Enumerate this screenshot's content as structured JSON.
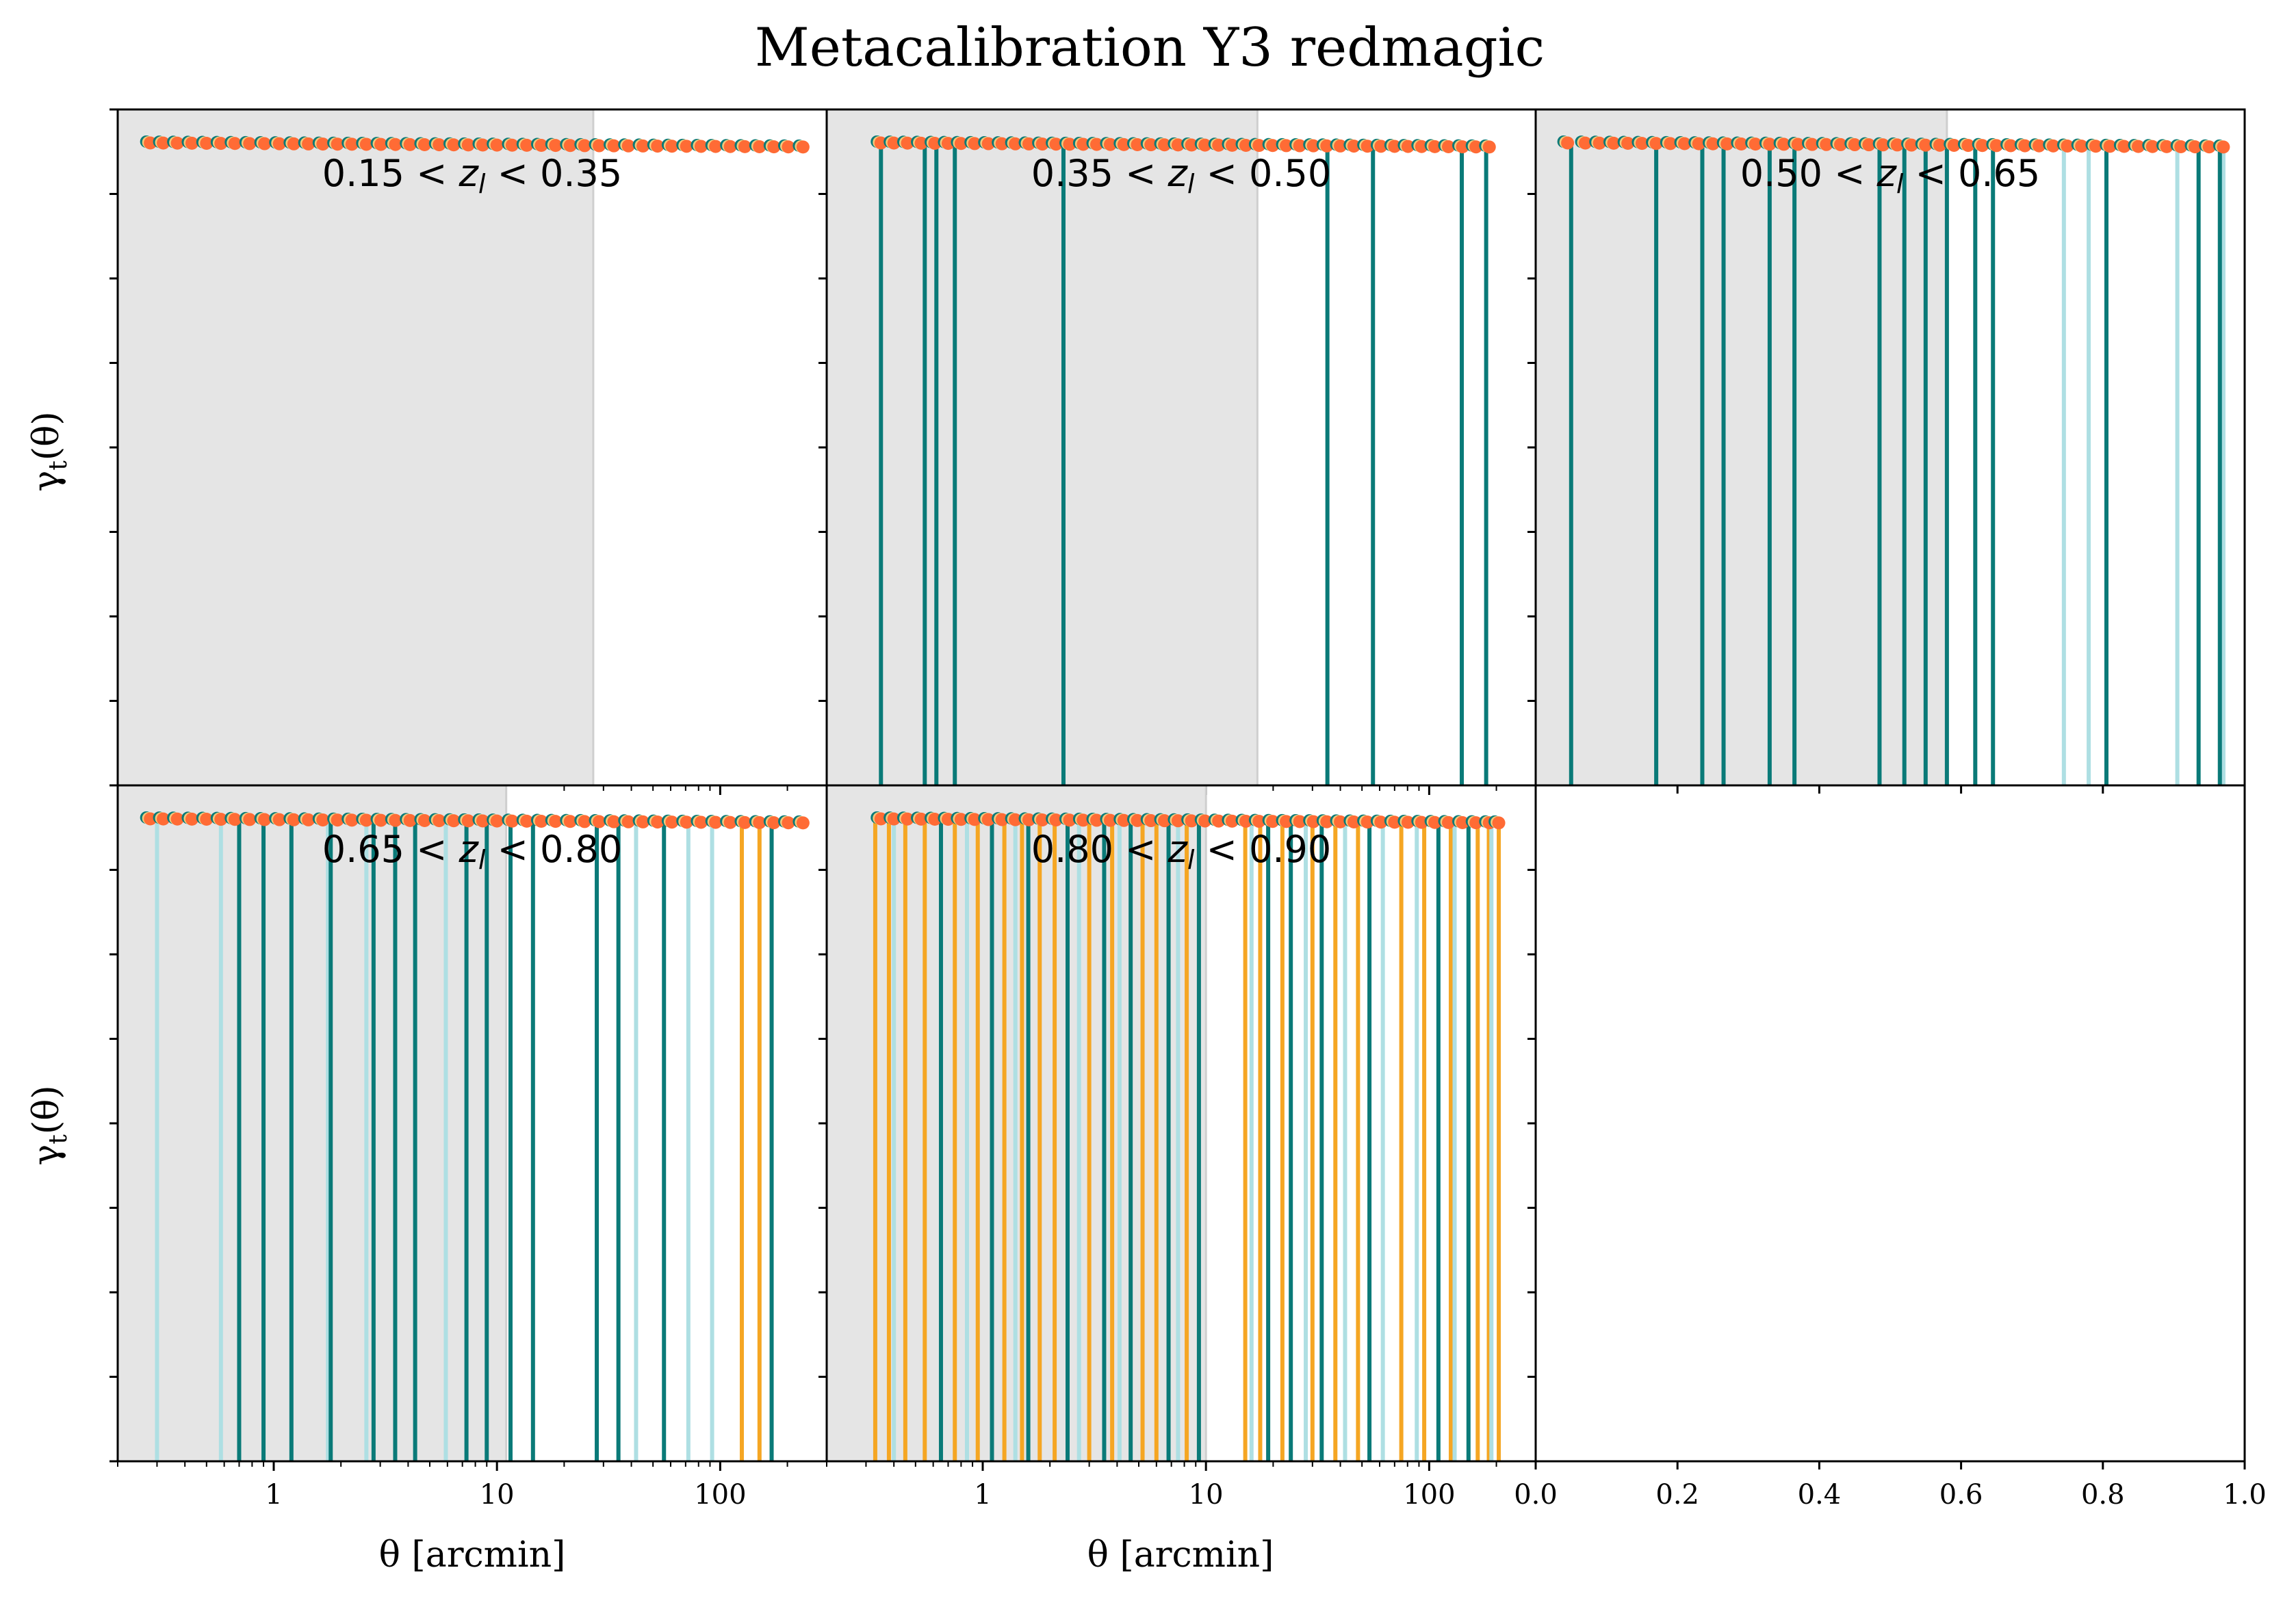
{
  "figure": {
    "title": "Metacalibration Y3 redmagic",
    "ylabel": "γ_t(θ)",
    "xlabel": "θ [arcmin]"
  },
  "chart_data": {
    "type": "scatter",
    "title": "Metacalibration Y3 redmagic",
    "xscale": "log",
    "xlim": [
      0.2,
      300
    ],
    "xticks": [
      1,
      10,
      100
    ],
    "xticklabels": [
      "1",
      "10",
      "100"
    ],
    "empty_panel_xticklabels": [
      "0.0",
      "0.2",
      "0.4",
      "0.6",
      "0.8",
      "1.0"
    ],
    "grid": false,
    "colors": {
      "series_a": "#0a7a78",
      "series_b": "#aedfe3",
      "series_c": "#f5a623",
      "points": "#ff6b35",
      "scale_cut": "#e5e5e5"
    },
    "panels": [
      {
        "label": "0.15 < z_l < 0.35",
        "scale_cut_max": 27,
        "theta": [
          0.28,
          0.32,
          0.37,
          0.43,
          0.5,
          0.58,
          0.67,
          0.78,
          0.91,
          1.06,
          1.23,
          1.43,
          1.66,
          1.93,
          2.24,
          2.6,
          3.02,
          3.51,
          4.08,
          4.74,
          5.51,
          6.4,
          7.44,
          8.64,
          10.0,
          11.7,
          13.6,
          15.8,
          18.3,
          21.3,
          24.7,
          28.7,
          33.4,
          38.8,
          45.1,
          52.4,
          60.8,
          70.7,
          82.1,
          95.4,
          111,
          129,
          150,
          174,
          202,
          235
        ],
        "gamma_t_level": [
          0.0,
          0.0,
          0.0,
          0.0,
          0.0,
          0.0,
          0.0,
          0.0,
          0.0,
          0.0,
          0.0,
          0.0,
          0.0,
          0.0,
          0.0,
          0.0,
          0.0,
          0.0,
          0.0,
          0.0,
          0.0,
          0.0,
          0.0,
          0.0,
          0.0,
          0.0,
          0.0,
          0.0,
          0.0,
          0.0,
          0.0,
          0.0,
          0.0,
          0.0,
          0.0,
          0.0,
          0.0,
          0.0,
          0.0,
          0.0,
          0.0,
          0.0,
          0.0,
          0.0,
          0.0,
          0.0
        ],
        "errorbars_a": [],
        "errorbars_b": [],
        "errorbars_c": []
      },
      {
        "label": "0.35 < z_l < 0.50",
        "scale_cut_max": 17,
        "theta": [
          0.35,
          0.4,
          0.46,
          0.53,
          0.61,
          0.7,
          0.8,
          0.92,
          1.06,
          1.22,
          1.4,
          1.61,
          1.85,
          2.13,
          2.45,
          2.82,
          3.24,
          3.73,
          4.29,
          4.93,
          5.67,
          6.52,
          7.5,
          8.62,
          9.9,
          11.4,
          13.1,
          15.1,
          17.3,
          19.9,
          22.9,
          26.3,
          30.3,
          34.8,
          40.0,
          46.0,
          52.9,
          60.8,
          70.0,
          80.4,
          92.5,
          106,
          122,
          141,
          162,
          186
        ],
        "gamma_t_level": [
          0.01,
          0.01,
          0.01,
          0.01,
          0.01,
          0.01,
          0.01,
          0.01,
          0.01,
          0.01,
          0.01,
          0.01,
          0.01,
          0.01,
          0.01,
          0.01,
          0.01,
          0.01,
          0.01,
          0.01,
          0.01,
          0.01,
          0.01,
          0.01,
          0.01,
          0.01,
          0.01,
          0.01,
          0.01,
          0.01,
          0.01,
          0.01,
          0.01,
          0.01,
          0.01,
          0.01,
          0.01,
          0.01,
          0.01,
          0.01,
          0.01,
          0.01,
          0.01,
          0.01,
          0.01,
          0.01
        ],
        "errorbars_a": [
          0.35,
          0.55,
          0.62,
          0.75,
          2.3,
          35,
          56,
          140,
          180
        ],
        "errorbars_b": [],
        "errorbars_c": []
      },
      {
        "label": "0.50 < z_l < 0.65",
        "scale_cut_max": 0.58,
        "xscale": "linear",
        "xlim": [
          0.0,
          1.0
        ],
        "theta": [
          0.045,
          0.07,
          0.09,
          0.11,
          0.13,
          0.15,
          0.17,
          0.19,
          0.21,
          0.23,
          0.25,
          0.27,
          0.29,
          0.31,
          0.33,
          0.35,
          0.37,
          0.39,
          0.41,
          0.43,
          0.45,
          0.47,
          0.49,
          0.51,
          0.53,
          0.55,
          0.57,
          0.59,
          0.61,
          0.63,
          0.65,
          0.67,
          0.69,
          0.71,
          0.73,
          0.75,
          0.77,
          0.79,
          0.81,
          0.83,
          0.85,
          0.87,
          0.89,
          0.91,
          0.93,
          0.95,
          0.97
        ],
        "gamma_t_level": [
          0.01,
          0.01,
          0.01,
          0.01,
          0.01,
          0.01,
          0.01,
          0.01,
          0.01,
          0.01,
          0.01,
          0.01,
          0.01,
          0.01,
          0.01,
          0.01,
          0.01,
          0.01,
          0.01,
          0.01,
          0.01,
          0.01,
          0.01,
          0.01,
          0.01,
          0.01,
          0.01,
          0.01,
          0.01,
          0.01,
          0.01,
          0.01,
          0.01,
          0.01,
          0.01,
          0.01,
          0.01,
          0.01,
          0.01,
          0.01,
          0.01,
          0.01,
          0.01,
          0.01,
          0.01,
          0.01,
          0.01
        ],
        "errorbars_a": [
          0.05,
          0.17,
          0.235,
          0.265,
          0.33,
          0.365,
          0.485,
          0.52,
          0.55,
          0.58,
          0.62,
          0.645,
          0.805,
          0.935,
          0.965
        ],
        "errorbars_b": [
          0.745,
          0.78,
          0.905,
          0.97
        ],
        "errorbars_c": []
      },
      {
        "label": "0.65 < z_l < 0.80",
        "scale_cut_max": 11,
        "theta": [
          0.28,
          0.32,
          0.37,
          0.43,
          0.5,
          0.58,
          0.67,
          0.78,
          0.91,
          1.06,
          1.23,
          1.43,
          1.66,
          1.93,
          2.24,
          2.6,
          3.02,
          3.51,
          4.08,
          4.74,
          5.51,
          6.4,
          7.44,
          8.64,
          10.0,
          11.7,
          13.6,
          15.8,
          18.3,
          21.3,
          24.7,
          28.7,
          33.4,
          38.8,
          45.1,
          52.4,
          60.8,
          70.7,
          82.1,
          95.4,
          111,
          129,
          150,
          174,
          202,
          235
        ],
        "gamma_t_level": [
          0.0,
          0.0,
          0.0,
          0.0,
          0.0,
          0.0,
          0.0,
          0.0,
          0.0,
          0.0,
          0.0,
          0.0,
          0.0,
          0.0,
          0.0,
          0.0,
          0.0,
          0.0,
          0.0,
          0.0,
          0.0,
          0.0,
          0.0,
          0.0,
          0.0,
          0.0,
          0.0,
          0.0,
          0.0,
          0.0,
          0.0,
          0.0,
          0.0,
          0.0,
          0.0,
          0.0,
          0.0,
          0.0,
          0.0,
          0.0,
          0.0,
          0.0,
          0.0,
          0.0,
          0.0,
          0.0
        ],
        "errorbars_a": [
          0.7,
          0.9,
          1.2,
          1.8,
          2.8,
          3.5,
          4.3,
          7.3,
          9.0,
          11.5,
          14.5,
          28,
          35,
          56,
          170
        ],
        "errorbars_b": [
          0.3,
          0.58,
          1.75,
          2.6,
          5.9,
          42,
          72,
          92
        ],
        "errorbars_c": [
          125,
          150
        ]
      },
      {
        "label": "0.80 < z_l < 0.90",
        "scale_cut_max": 10,
        "theta": [
          0.35,
          0.4,
          0.46,
          0.53,
          0.61,
          0.7,
          0.8,
          0.92,
          1.06,
          1.22,
          1.4,
          1.61,
          1.85,
          2.13,
          2.45,
          2.82,
          3.24,
          3.73,
          4.29,
          4.93,
          5.67,
          6.52,
          7.5,
          8.62,
          9.9,
          11.4,
          13.1,
          15.1,
          17.3,
          19.9,
          22.9,
          26.3,
          30.3,
          34.8,
          40.0,
          46.0,
          52.9,
          60.8,
          70.0,
          80.4,
          92.5,
          106,
          122,
          141,
          162,
          186,
          205
        ],
        "gamma_t_level": [
          0.01,
          0.01,
          0.01,
          0.01,
          0.01,
          0.01,
          0.01,
          0.01,
          0.01,
          0.01,
          0.01,
          0.01,
          0.01,
          0.01,
          0.01,
          0.01,
          0.01,
          0.01,
          0.01,
          0.01,
          0.01,
          0.01,
          0.01,
          0.01,
          0.01,
          0.01,
          0.01,
          0.01,
          0.01,
          0.01,
          0.01,
          0.01,
          0.01,
          0.01,
          0.01,
          0.01,
          0.01,
          0.01,
          0.01,
          0.01,
          0.01,
          0.01,
          0.01,
          0.01,
          0.01,
          0.01,
          0.01
        ],
        "errorbars_a": [
          0.65,
          1.1,
          1.6,
          2.4,
          3.5,
          4.6,
          6.8,
          9.3,
          19,
          24,
          33,
          54,
          110,
          150
        ],
        "errorbars_b": [
          0.4,
          0.85,
          1.4,
          2.7,
          4.1,
          7.5,
          16,
          28,
          42,
          62,
          88,
          130,
          190
        ],
        "errorbars_c": [
          0.33,
          0.38,
          0.45,
          0.55,
          0.75,
          0.95,
          1.25,
          1.5,
          1.8,
          2.1,
          3.0,
          3.8,
          5.2,
          6.0,
          8.2,
          15,
          17.5,
          22,
          30,
          38,
          48,
          75,
          95,
          125,
          165,
          185,
          205
        ]
      },
      {
        "label": "",
        "empty": true
      }
    ]
  }
}
